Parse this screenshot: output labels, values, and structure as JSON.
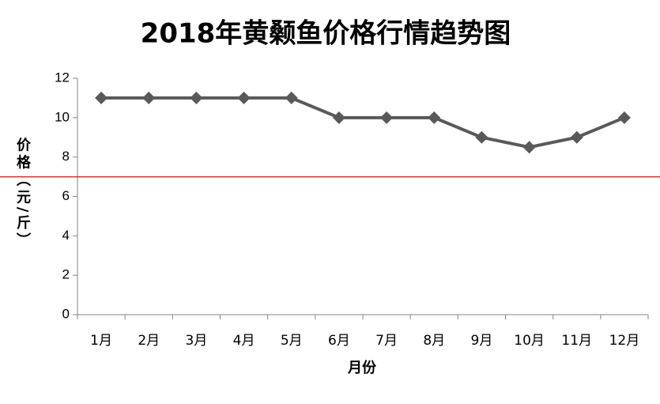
{
  "chart_data": {
    "type": "line",
    "title": "2018年黄颡鱼价格行情趋势图",
    "x_label": "月份",
    "y_label": "价格（元/斤）",
    "categories": [
      "1月",
      "2月",
      "3月",
      "4月",
      "5月",
      "6月",
      "7月",
      "8月",
      "9月",
      "10月",
      "11月",
      "12月"
    ],
    "series": [
      {
        "color": "#595959",
        "values": [
          11,
          11,
          11,
          11,
          11,
          10,
          10,
          10,
          9,
          8.5,
          9,
          10
        ]
      }
    ],
    "reference_line": {
      "value": 7,
      "color": "#c0392b"
    },
    "ylim": [
      0,
      12
    ],
    "yticks": [
      0,
      2,
      4,
      6,
      8,
      10,
      12
    ],
    "grid": false
  }
}
